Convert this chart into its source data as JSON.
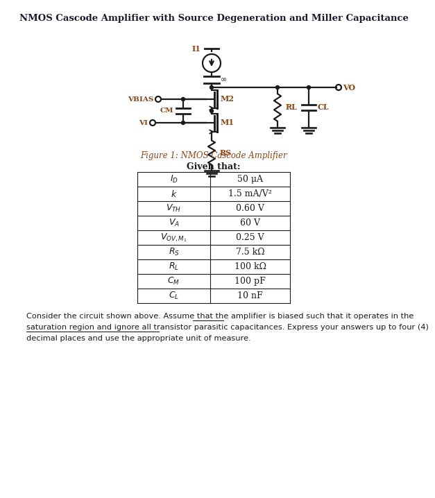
{
  "title": "NMOS Cascode Amplifier with Source Degeneration and Miller Capacitance",
  "figure_caption": "Figure 1: NMOS Cascode Amplifier",
  "title_color": "#1a1a2e",
  "caption_color": "#8B4513",
  "circuit_color": "#1a1a1a",
  "label_color": "#8B4513",
  "row_labels": [
    "$I_D$",
    "$k$",
    "$V_{TH}$",
    "$V_A$",
    "$V_{OV,M_1}$",
    "$R_S$",
    "$R_L$",
    "$C_M$",
    "$C_L$"
  ],
  "row_values": [
    "50 μA",
    "1.5 mA/V²",
    "0.60 V",
    "60 V",
    "0.25 V",
    "7.5 kΩ",
    "100 kΩ",
    "100 pF",
    "10 nF"
  ],
  "bg_color": "#ffffff",
  "footer_line1_plain": "Consider the circuit shown above. Assume that the amplifier is biased such that it ",
  "footer_line1_underline": "operates in the",
  "footer_line2_underline": "saturation region and ignore all transistor parasitic capacitances",
  "footer_line2_plain": ". Express your answers up to four (4)",
  "footer_line3": "decimal places and use the appropriate unit of measure."
}
